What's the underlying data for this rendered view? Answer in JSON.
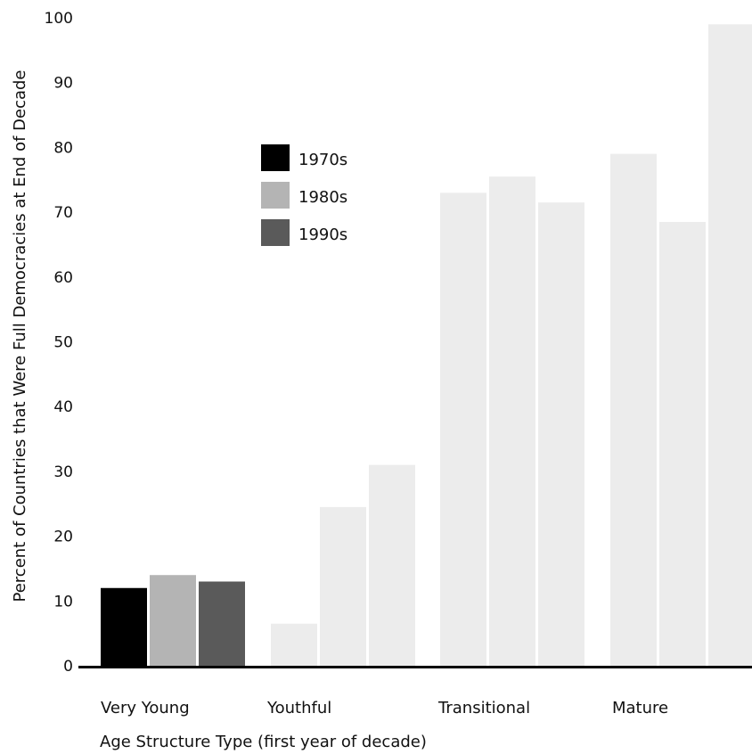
{
  "chart_data": {
    "type": "bar",
    "title": "",
    "xlabel": "Age Structure Type (first year of decade)",
    "ylabel": "Percent  of Countries that  Were Full Democracies at End of Decade",
    "categories": [
      "Very Young",
      "Youthful",
      "Transitional",
      "Mature"
    ],
    "series": [
      {
        "name": "1970s",
        "color": "#000000",
        "values": [
          12,
          6.5,
          73,
          79
        ]
      },
      {
        "name": "1980s",
        "color": "#b4b4b4",
        "values": [
          14,
          24.5,
          75.5,
          68.5
        ]
      },
      {
        "name": "1990s",
        "color": "#5a5a5a",
        "values": [
          13,
          31,
          71.5,
          99
        ]
      }
    ],
    "faded_color": "#ececec",
    "highlighted_category": "Very Young",
    "ylim": [
      0,
      100
    ],
    "yticks": [
      "0",
      "10",
      "20",
      "30",
      "40",
      "50",
      "60",
      "70",
      "80",
      "90",
      "100"
    ],
    "grid": false,
    "legend": "upper-left"
  }
}
